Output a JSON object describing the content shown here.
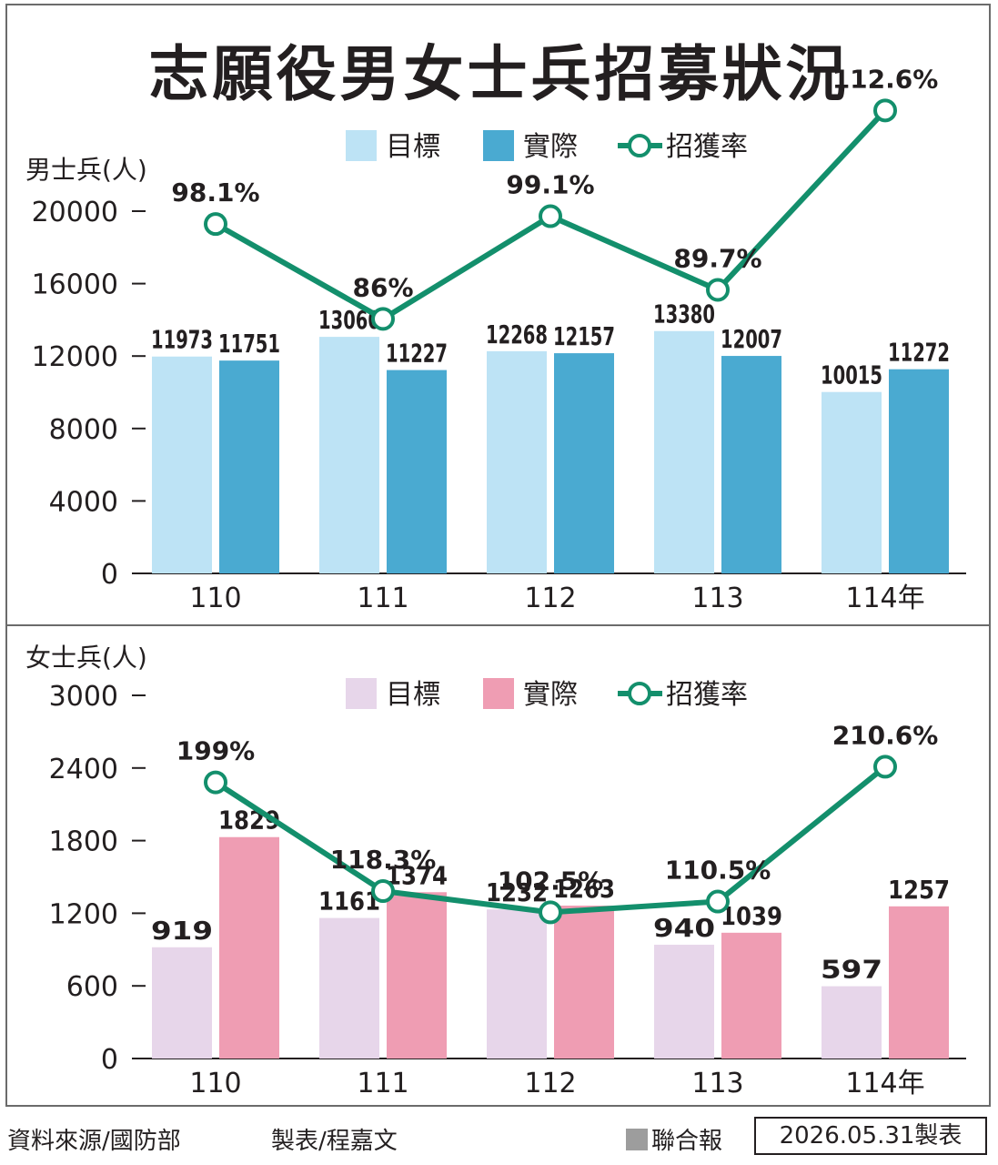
{
  "title": "志願役男女士兵招募狀況",
  "chart_data": [
    {
      "type": "bar",
      "unit_label": "男士兵(人)",
      "categories": [
        "110",
        "111",
        "112",
        "113",
        "114年"
      ],
      "y_ticks": [
        "20000",
        "16000",
        "12000",
        "8000",
        "4000",
        "0"
      ],
      "ylim": [
        0,
        20000
      ],
      "legend": {
        "target": "目標",
        "actual": "實際",
        "rate": "招獲率"
      },
      "series": [
        {
          "name": "目標",
          "values": [
            11973,
            13060,
            12268,
            13380,
            10015
          ],
          "labels": [
            "11973",
            "13060",
            "12268",
            "13380",
            "10015"
          ],
          "color": "#bde3f5"
        },
        {
          "name": "實際",
          "values": [
            11751,
            11227,
            12157,
            12007,
            11272
          ],
          "labels": [
            "11751",
            "11227",
            "12157",
            "12007",
            "11272"
          ],
          "color": "#4aaad1"
        }
      ],
      "rate": {
        "name": "招獲率",
        "values": [
          98.1,
          86,
          99.1,
          89.7,
          112.6
        ],
        "labels": [
          "98.1%",
          "86%",
          "99.1%",
          "89.7%",
          "112.6%"
        ],
        "color": "#138f6c"
      }
    },
    {
      "type": "bar",
      "unit_label": "女士兵(人)",
      "categories": [
        "110",
        "111",
        "112",
        "113",
        "114年"
      ],
      "y_ticks": [
        "3000",
        "2400",
        "1800",
        "1200",
        "600",
        "0"
      ],
      "ylim": [
        0,
        3000
      ],
      "legend": {
        "target": "目標",
        "actual": "實際",
        "rate": "招獲率"
      },
      "series": [
        {
          "name": "目標",
          "values": [
            919,
            1161,
            1232,
            940,
            597
          ],
          "labels": [
            "919",
            "1161",
            "1232",
            "940",
            "597"
          ],
          "color": "#e7d6ea"
        },
        {
          "name": "實際",
          "values": [
            1829,
            1374,
            1263,
            1039,
            1257
          ],
          "labels": [
            "1829",
            "1374",
            "1263",
            "1039",
            "1257"
          ],
          "color": "#ef9db3"
        }
      ],
      "rate": {
        "name": "招獲率",
        "values": [
          199,
          118.3,
          102.5,
          110.5,
          210.6
        ],
        "labels": [
          "199%",
          "118.3%",
          "102.5%",
          "110.5%",
          "210.6%"
        ],
        "color": "#138f6c"
      }
    }
  ],
  "footer": {
    "source": "資料來源/國防部",
    "credit": "製表/程嘉文",
    "publisher": "聯合報",
    "date": "2026.05.31製表"
  }
}
